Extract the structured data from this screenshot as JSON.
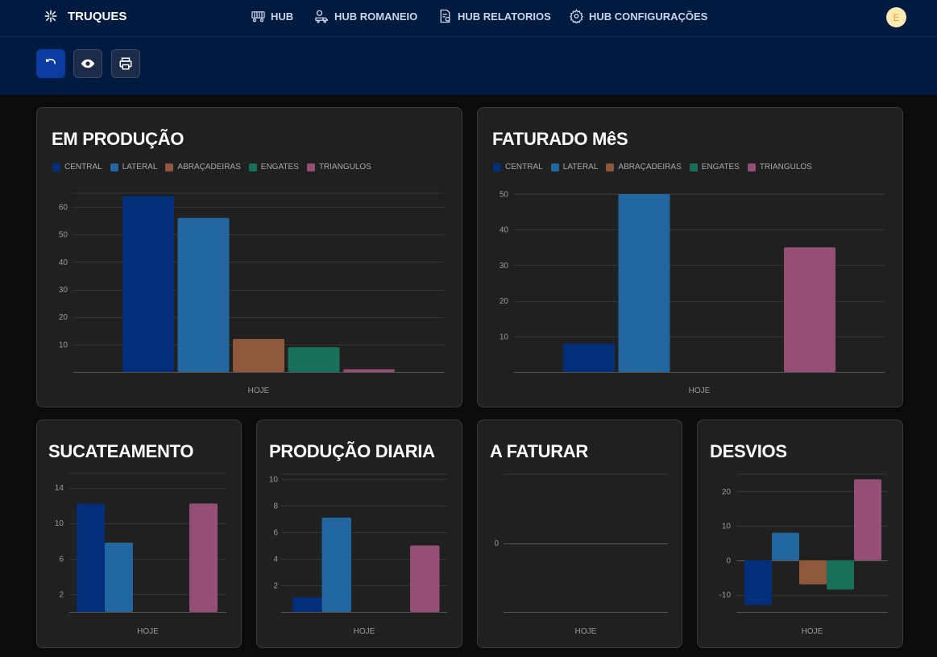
{
  "header": {
    "brand": "TRUQUES",
    "nav": [
      {
        "label": "HUB"
      },
      {
        "label": "HUB ROMANEIO"
      },
      {
        "label": "HUB RELATORIOS"
      },
      {
        "label": "HUB CONFIGURAÇÕES"
      }
    ],
    "avatar_initial": "E"
  },
  "toolbar": {
    "buttons": [
      "undo-icon",
      "eye-icon",
      "printer-icon"
    ]
  },
  "legend_labels": [
    "CENTRAL",
    "LATERAL",
    "ABRAÇADEIRAS",
    "ENGATES",
    "TRIANGULOS"
  ],
  "colors": {
    "central": "#022e7a",
    "lateral": "#21669e",
    "abracadeiras": "#8f573b",
    "engates": "#19705a",
    "triangulos": "#964f74"
  },
  "cards": {
    "em_producao": {
      "title": "EM PRODUÇÃO"
    },
    "faturado_mes": {
      "title": "FATURADO MêS"
    },
    "sucateamento": {
      "title": "SUCATEAMENTO"
    },
    "producao_diaria": {
      "title": "PRODUÇÃO DIARIA"
    },
    "a_faturar": {
      "title": "A FATURAR"
    },
    "desvios": {
      "title": "DESVIOS"
    }
  },
  "chart_data": [
    {
      "id": "em_producao",
      "type": "bar",
      "categories": [
        "HOJE"
      ],
      "series": [
        {
          "name": "CENTRAL",
          "values": [
            64
          ]
        },
        {
          "name": "LATERAL",
          "values": [
            56
          ]
        },
        {
          "name": "ABRAÇADEIRAS",
          "values": [
            12
          ]
        },
        {
          "name": "ENGATES",
          "values": [
            9
          ]
        },
        {
          "name": "TRIANGULOS",
          "values": [
            1
          ]
        }
      ],
      "yticks": [
        10,
        20,
        30,
        40,
        50,
        60
      ],
      "ylim": [
        0,
        65
      ],
      "grid": true,
      "legend": "top-left"
    },
    {
      "id": "faturado_mes",
      "type": "bar",
      "categories": [
        "HOJE"
      ],
      "series": [
        {
          "name": "CENTRAL",
          "values": [
            8
          ]
        },
        {
          "name": "LATERAL",
          "values": [
            50
          ]
        },
        {
          "name": "ABRAÇADEIRAS",
          "values": [
            0
          ]
        },
        {
          "name": "ENGATES",
          "values": [
            0
          ]
        },
        {
          "name": "TRIANGULOS",
          "values": [
            35
          ]
        }
      ],
      "yticks": [
        10,
        20,
        30,
        40,
        50
      ],
      "ylim": [
        0,
        50
      ],
      "grid": true,
      "legend": "top-left"
    },
    {
      "id": "sucateamento",
      "type": "bar",
      "categories": [
        "HOJE"
      ],
      "series": [
        {
          "name": "CENTRAL",
          "values": [
            12.2
          ]
        },
        {
          "name": "LATERAL",
          "values": [
            7.8
          ]
        },
        {
          "name": "ABRAÇADEIRAS",
          "values": [
            0
          ]
        },
        {
          "name": "ENGATES",
          "values": [
            0
          ]
        },
        {
          "name": "TRIANGULOS",
          "values": [
            12.2
          ]
        }
      ],
      "yticks": [
        2,
        6,
        10,
        14
      ],
      "ylim": [
        0,
        14.5
      ],
      "grid": true
    },
    {
      "id": "producao_diaria",
      "type": "bar",
      "categories": [
        "HOJE"
      ],
      "series": [
        {
          "name": "CENTRAL",
          "values": [
            1.1
          ]
        },
        {
          "name": "LATERAL",
          "values": [
            7.1
          ]
        },
        {
          "name": "ABRAÇADEIRAS",
          "values": [
            0
          ]
        },
        {
          "name": "ENGATES",
          "values": [
            0
          ]
        },
        {
          "name": "TRIANGULOS",
          "values": [
            5
          ]
        }
      ],
      "yticks": [
        2,
        4,
        6,
        8,
        10
      ],
      "ylim": [
        0,
        10
      ],
      "grid": true
    },
    {
      "id": "a_faturar",
      "type": "bar",
      "categories": [
        "HOJE"
      ],
      "series": [
        {
          "name": "CENTRAL",
          "values": [
            0
          ]
        },
        {
          "name": "LATERAL",
          "values": [
            0
          ]
        },
        {
          "name": "ABRAÇADEIRAS",
          "values": [
            0
          ]
        },
        {
          "name": "ENGATES",
          "values": [
            0
          ]
        },
        {
          "name": "TRIANGULOS",
          "values": [
            0
          ]
        }
      ],
      "yticks": [
        0
      ],
      "ylim": [
        -1,
        1
      ],
      "grid": true
    },
    {
      "id": "desvios",
      "type": "bar",
      "categories": [
        "HOJE"
      ],
      "series": [
        {
          "name": "CENTRAL",
          "values": [
            -13
          ]
        },
        {
          "name": "LATERAL",
          "values": [
            8
          ]
        },
        {
          "name": "ABRAÇADEIRAS",
          "values": [
            -7
          ]
        },
        {
          "name": "ENGATES",
          "values": [
            -8.5
          ]
        },
        {
          "name": "TRIANGULOS",
          "values": [
            23.5
          ]
        }
      ],
      "yticks": [
        -10,
        0,
        10,
        20
      ],
      "ylim": [
        -15,
        25
      ],
      "grid": true
    }
  ]
}
